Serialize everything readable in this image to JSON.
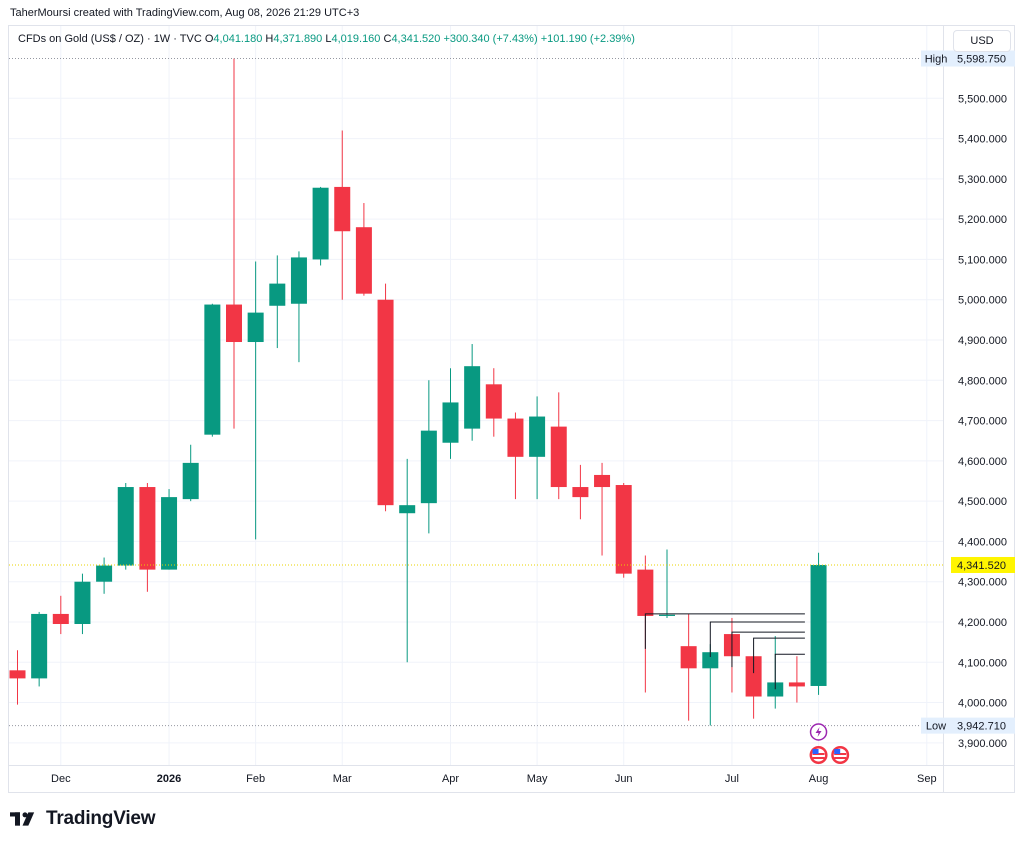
{
  "header": {
    "credit": "TaherMoursi created with TradingView.com, Aug 08, 2026 21:29 UTC+3",
    "symbol": "CFDs on Gold (US$ / OZ) · 1W · TVC",
    "open_label": "O",
    "open": "4,041.180",
    "high_label": "H",
    "high": "4,371.890",
    "low_label": "L",
    "low": "4,019.160",
    "close_label": "C",
    "close": "4,341.520",
    "change": "+300.340 (+7.43%)",
    "change2": "+101.190 (+2.39%)",
    "currency": "USD"
  },
  "brand": {
    "name": "TradingView"
  },
  "colors": {
    "up": "#089981",
    "down": "#f23645",
    "grid": "#f0f3fa",
    "price_tag": "#fff500",
    "label_bg": "#e3effd"
  },
  "chart_data": {
    "type": "candlestick",
    "title": "CFDs on Gold (US$ / OZ) · 1W · TVC",
    "ylim": [
      3845,
      5605
    ],
    "y_ticks": [
      3900,
      4000,
      4100,
      4200,
      4300,
      4400,
      4500,
      4600,
      4700,
      4800,
      4900,
      5000,
      5100,
      5200,
      5300,
      5400,
      5500
    ],
    "y_tick_labels": [
      "3,900.000",
      "4,000.000",
      "4,100.000",
      "4,200.000",
      "4,300.000",
      "4,400.000",
      "4,500.000",
      "4,600.000",
      "4,700.000",
      "4,800.000",
      "4,900.000",
      "5,000.000",
      "5,100.000",
      "5,200.000",
      "5,300.000",
      "5,400.000",
      "5,500.000"
    ],
    "x_tick_labels": [
      {
        "label": "Dec",
        "index": 2.0
      },
      {
        "label": "2026",
        "index": 7.0
      },
      {
        "label": "Feb",
        "index": 11.0
      },
      {
        "label": "Mar",
        "index": 15.0
      },
      {
        "label": "Apr",
        "index": 20.0
      },
      {
        "label": "May",
        "index": 24.0
      },
      {
        "label": "Jun",
        "index": 28.0
      },
      {
        "label": "Jul",
        "index": 33.0
      },
      {
        "label": "Aug",
        "index": 37.0
      },
      {
        "label": "Sep",
        "index": 42.0
      }
    ],
    "high_marker": {
      "label": "High",
      "value": 5598.75,
      "text": "5,598.750"
    },
    "low_marker": {
      "label": "Low",
      "value": 3942.71,
      "text": "3,942.710"
    },
    "last_price": {
      "value": 4341.52,
      "text": "4,341.520"
    },
    "candles": [
      {
        "o": 4080,
        "h": 4130,
        "l": 3995,
        "c": 4060
      },
      {
        "o": 4060,
        "h": 4225,
        "l": 4040,
        "c": 4220
      },
      {
        "o": 4220,
        "h": 4265,
        "l": 4170,
        "c": 4195
      },
      {
        "o": 4195,
        "h": 4320,
        "l": 4170,
        "c": 4300
      },
      {
        "o": 4300,
        "h": 4360,
        "l": 4270,
        "c": 4340
      },
      {
        "o": 4340,
        "h": 4545,
        "l": 4330,
        "c": 4535
      },
      {
        "o": 4535,
        "h": 4545,
        "l": 4275,
        "c": 4330
      },
      {
        "o": 4330,
        "h": 4530,
        "l": 4330,
        "c": 4510
      },
      {
        "o": 4505,
        "h": 4640,
        "l": 4500,
        "c": 4595
      },
      {
        "o": 4665,
        "h": 4990,
        "l": 4660,
        "c": 4988
      },
      {
        "o": 4988,
        "h": 5598.75,
        "l": 4680,
        "c": 4895
      },
      {
        "o": 4895,
        "h": 5095,
        "l": 4405,
        "c": 4968
      },
      {
        "o": 4985,
        "h": 5110,
        "l": 4880,
        "c": 5040
      },
      {
        "o": 4990,
        "h": 5120,
        "l": 4845,
        "c": 5105
      },
      {
        "o": 5100,
        "h": 5280,
        "l": 5085,
        "c": 5278
      },
      {
        "o": 5280,
        "h": 5420,
        "l": 5000,
        "c": 5170
      },
      {
        "o": 5180,
        "h": 5240,
        "l": 5010,
        "c": 5015
      },
      {
        "o": 5000,
        "h": 5040,
        "l": 4475,
        "c": 4490
      },
      {
        "o": 4470,
        "h": 4605,
        "l": 4100,
        "c": 4490
      },
      {
        "o": 4495,
        "h": 4800,
        "l": 4420,
        "c": 4675
      },
      {
        "o": 4645,
        "h": 4830,
        "l": 4605,
        "c": 4745
      },
      {
        "o": 4680,
        "h": 4890,
        "l": 4650,
        "c": 4835
      },
      {
        "o": 4790,
        "h": 4830,
        "l": 4660,
        "c": 4705
      },
      {
        "o": 4705,
        "h": 4720,
        "l": 4505,
        "c": 4610
      },
      {
        "o": 4610,
        "h": 4760,
        "l": 4505,
        "c": 4710
      },
      {
        "o": 4685,
        "h": 4770,
        "l": 4505,
        "c": 4535
      },
      {
        "o": 4535,
        "h": 4590,
        "l": 4455,
        "c": 4510
      },
      {
        "o": 4565,
        "h": 4595,
        "l": 4365,
        "c": 4535
      },
      {
        "o": 4540,
        "h": 4545,
        "l": 4310,
        "c": 4320
      },
      {
        "o": 4330,
        "h": 4365,
        "l": 4025,
        "c": 4215
      },
      {
        "o": 4215,
        "h": 4380,
        "l": 4210,
        "c": 4218
      },
      {
        "o": 4140,
        "h": 4220,
        "l": 3955,
        "c": 4085
      },
      {
        "o": 4085,
        "h": 4145,
        "l": 3943,
        "c": 4125
      },
      {
        "o": 4170,
        "h": 4210,
        "l": 4025,
        "c": 4115
      },
      {
        "o": 4115,
        "h": 4115,
        "l": 3960,
        "c": 4015
      },
      {
        "o": 4015,
        "h": 4165,
        "l": 3985,
        "c": 4050
      },
      {
        "o": 4050,
        "h": 4115,
        "l": 4000,
        "c": 4040
      },
      {
        "o": 4041.18,
        "h": 4371.89,
        "l": 4019.16,
        "c": 4341.52
      }
    ],
    "step_lines": [
      {
        "from": 29,
        "to": 36,
        "value": 4220
      },
      {
        "from": 32,
        "to": 36,
        "value": 4200
      },
      {
        "from": 33,
        "to": 36,
        "value": 4175
      },
      {
        "from": 34,
        "to": 36,
        "value": 4160
      },
      {
        "from": 35,
        "to": 36,
        "value": 4120
      }
    ],
    "event_markers": [
      {
        "index": 37,
        "icon": "lightning-icon",
        "row": 0
      },
      {
        "index": 37,
        "icon": "us-flag-icon",
        "row": 1
      },
      {
        "index": 38,
        "icon": "us-flag-icon",
        "row": 1
      }
    ]
  }
}
